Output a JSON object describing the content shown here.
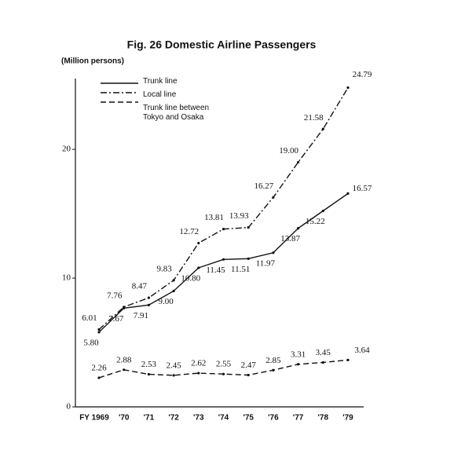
{
  "chart_data": {
    "type": "line",
    "title": "Fig. 26  Domestic Airline Passengers",
    "y_label": "(Million persons)",
    "categories": [
      "FY 1969",
      "'70",
      "'71",
      "'72",
      "'73",
      "'74",
      "'75",
      "'76",
      "'77",
      "'78",
      "'79"
    ],
    "series": [
      {
        "name": "Trunk line",
        "color": "#111111",
        "line_style": "solid",
        "values": [
          5.8,
          7.67,
          7.91,
          9.0,
          10.8,
          11.45,
          11.51,
          11.97,
          13.87,
          15.22,
          16.57
        ],
        "value_labels": [
          "5.80",
          "7.67",
          "7.91",
          "9.00",
          "10.80",
          "11.45",
          "11.51",
          "11.97",
          "13.87",
          "15.22",
          "16.57"
        ]
      },
      {
        "name": "Local line",
        "color": "#111111",
        "line_style": "dashdot",
        "values": [
          6.01,
          7.76,
          8.47,
          9.83,
          12.72,
          13.81,
          13.93,
          16.27,
          19.0,
          21.58,
          24.79
        ],
        "value_labels": [
          "6.01",
          "7.76",
          "8.47",
          "9.83",
          "12.72",
          "13.81",
          "13.93",
          "16.27",
          "19.00",
          "21.58",
          "24.79"
        ]
      },
      {
        "name": "Trunk line between\nTokyo and Osaka",
        "color": "#111111",
        "line_style": "dashed",
        "values": [
          2.26,
          2.88,
          2.53,
          2.45,
          2.62,
          2.55,
          2.47,
          2.85,
          3.31,
          3.45,
          3.64
        ],
        "value_labels": [
          "2.26",
          "2.88",
          "2.53",
          "2.45",
          "2.62",
          "2.55",
          "2.47",
          "2.85",
          "3.31",
          "3.45",
          "3.64"
        ]
      }
    ],
    "ylim": [
      0,
      25.5
    ],
    "yticks": [
      0,
      10,
      20
    ],
    "grid": false
  }
}
